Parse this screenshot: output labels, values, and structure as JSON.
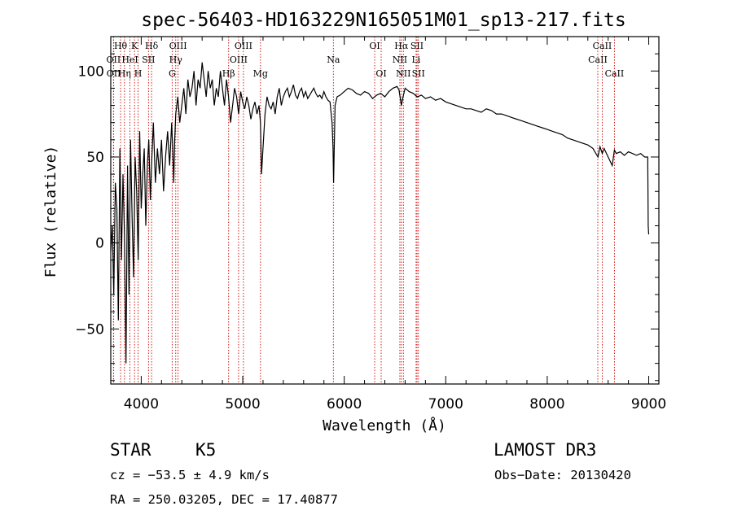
{
  "chart_data": {
    "type": "line",
    "title": "spec-56403-HD163229N165051M01_sp13-217.fits",
    "xlabel": "Wavelength (Å)",
    "ylabel": "Flux (relative)",
    "xlim": [
      3700,
      9100
    ],
    "ylim": [
      -82,
      120
    ],
    "xticks": [
      4000,
      5000,
      6000,
      7000,
      8000,
      9000
    ],
    "yticks": [
      -50,
      0,
      50,
      100
    ],
    "spectrum": {
      "name": "flux",
      "x": [
        3700,
        3715,
        3730,
        3745,
        3760,
        3775,
        3790,
        3805,
        3820,
        3835,
        3850,
        3865,
        3880,
        3895,
        3910,
        3925,
        3940,
        3955,
        3970,
        3985,
        4000,
        4015,
        4030,
        4045,
        4060,
        4075,
        4090,
        4105,
        4120,
        4140,
        4160,
        4180,
        4200,
        4220,
        4240,
        4260,
        4280,
        4300,
        4310,
        4320,
        4330,
        4340,
        4360,
        4380,
        4400,
        4420,
        4440,
        4460,
        4480,
        4500,
        4520,
        4540,
        4560,
        4580,
        4600,
        4620,
        4640,
        4660,
        4680,
        4700,
        4720,
        4740,
        4760,
        4780,
        4800,
        4820,
        4840,
        4860,
        4880,
        4900,
        4920,
        4940,
        4960,
        4980,
        5000,
        5020,
        5040,
        5060,
        5080,
        5100,
        5120,
        5140,
        5160,
        5175,
        5185,
        5200,
        5220,
        5240,
        5260,
        5280,
        5300,
        5320,
        5340,
        5360,
        5380,
        5400,
        5420,
        5440,
        5460,
        5480,
        5500,
        5520,
        5540,
        5560,
        5580,
        5600,
        5620,
        5640,
        5660,
        5680,
        5700,
        5720,
        5740,
        5760,
        5780,
        5800,
        5820,
        5840,
        5860,
        5880,
        5890,
        5895,
        5900,
        5910,
        5930,
        5960,
        6000,
        6040,
        6080,
        6120,
        6160,
        6200,
        6240,
        6280,
        6320,
        6360,
        6400,
        6440,
        6480,
        6520,
        6540,
        6563,
        6580,
        6600,
        6640,
        6680,
        6720,
        6760,
        6800,
        6850,
        6900,
        6950,
        7000,
        7050,
        7100,
        7150,
        7200,
        7250,
        7300,
        7350,
        7400,
        7450,
        7500,
        7550,
        7600,
        7650,
        7700,
        7750,
        7800,
        7850,
        7900,
        7950,
        8000,
        8050,
        8100,
        8150,
        8200,
        8250,
        8300,
        8350,
        8400,
        8450,
        8500,
        8520,
        8542,
        8560,
        8600,
        8640,
        8662,
        8680,
        8720,
        8760,
        8800,
        8840,
        8880,
        8920,
        8960,
        8990,
        8995,
        9000
      ],
      "y": [
        -5,
        10,
        -30,
        35,
        20,
        -45,
        55,
        -10,
        40,
        5,
        -70,
        45,
        -30,
        60,
        15,
        -20,
        50,
        30,
        -10,
        65,
        20,
        40,
        55,
        10,
        45,
        60,
        25,
        50,
        70,
        35,
        55,
        40,
        60,
        30,
        50,
        65,
        45,
        70,
        55,
        35,
        60,
        75,
        85,
        70,
        80,
        90,
        75,
        95,
        85,
        90,
        100,
        80,
        95,
        90,
        105,
        95,
        85,
        100,
        90,
        95,
        80,
        90,
        85,
        100,
        90,
        80,
        95,
        85,
        70,
        80,
        90,
        85,
        75,
        88,
        82,
        78,
        85,
        80,
        72,
        78,
        82,
        75,
        80,
        70,
        40,
        55,
        75,
        85,
        80,
        78,
        82,
        75,
        85,
        90,
        80,
        85,
        88,
        90,
        85,
        88,
        92,
        86,
        84,
        88,
        90,
        85,
        88,
        84,
        86,
        88,
        90,
        87,
        85,
        86,
        84,
        88,
        85,
        83,
        82,
        70,
        55,
        35,
        50,
        80,
        85,
        86,
        88,
        90,
        89,
        87,
        86,
        88,
        87,
        84,
        86,
        87,
        85,
        88,
        90,
        91,
        89,
        80,
        85,
        90,
        88,
        87,
        85,
        86,
        84,
        85,
        83,
        84,
        82,
        81,
        80,
        79,
        78,
        78,
        77,
        76,
        78,
        77,
        75,
        75,
        74,
        73,
        72,
        71,
        70,
        69,
        68,
        67,
        66,
        65,
        64,
        63,
        61,
        60,
        59,
        58,
        57,
        55,
        50,
        56,
        52,
        55,
        50,
        45,
        54,
        52,
        53,
        51,
        53,
        52,
        51,
        52,
        50,
        50,
        10,
        5
      ],
      "approximate": true
    },
    "lines": [
      {
        "label": "Hθ",
        "wavelength": 3797,
        "row": 0
      },
      {
        "label": "OII",
        "wavelength": 3727,
        "row": 1
      },
      {
        "label": "OII",
        "wavelength": 3729,
        "row": 2
      },
      {
        "label": "Hη",
        "wavelength": 3835,
        "row": 2
      },
      {
        "label": "K",
        "wavelength": 3934,
        "row": 0
      },
      {
        "label": "HeI",
        "wavelength": 3889,
        "row": 1
      },
      {
        "label": "H",
        "wavelength": 3969,
        "row": 2
      },
      {
        "label": "Hδ",
        "wavelength": 4102,
        "row": 0
      },
      {
        "label": "SII",
        "wavelength": 4072,
        "row": 1
      },
      {
        "label": "OIII",
        "wavelength": 4363,
        "row": 0
      },
      {
        "label": "Hγ",
        "wavelength": 4340,
        "row": 1
      },
      {
        "label": "G",
        "wavelength": 4305,
        "row": 2
      },
      {
        "label": "Hβ",
        "wavelength": 4861,
        "row": 2
      },
      {
        "label": "OIII",
        "wavelength": 5007,
        "row": 0
      },
      {
        "label": "OIII",
        "wavelength": 4959,
        "row": 1
      },
      {
        "label": "Mg",
        "wavelength": 5175,
        "row": 2
      },
      {
        "label": "Na",
        "wavelength": 5893,
        "row": 1
      },
      {
        "label": "OI",
        "wavelength": 6300,
        "row": 0
      },
      {
        "label": "OI",
        "wavelength": 6364,
        "row": 2
      },
      {
        "label": "Hα",
        "wavelength": 6563,
        "row": 0
      },
      {
        "label": "NII",
        "wavelength": 6548,
        "row": 1
      },
      {
        "label": "NII",
        "wavelength": 6583,
        "row": 2
      },
      {
        "label": "SII",
        "wavelength": 6717,
        "row": 0
      },
      {
        "label": "Li",
        "wavelength": 6708,
        "row": 1
      },
      {
        "label": "SII",
        "wavelength": 6731,
        "row": 2
      },
      {
        "label": "CaII",
        "wavelength": 8542,
        "row": 0
      },
      {
        "label": "CaII",
        "wavelength": 8498,
        "row": 1
      },
      {
        "label": "CaII",
        "wavelength": 8662,
        "row": 2
      }
    ]
  },
  "info": {
    "object_class": "STAR",
    "subclass": "K5",
    "survey": "LAMOST DR3",
    "cz": "cz = −53.5 ± 4.9 km/s",
    "obs_date": "Obs−Date: 20130420",
    "coords": "RA = 250.03205, DEC =  17.40877"
  },
  "colors": {
    "spectrum": "#000000",
    "line_markers": "#cc0000",
    "axes": "#000000"
  }
}
